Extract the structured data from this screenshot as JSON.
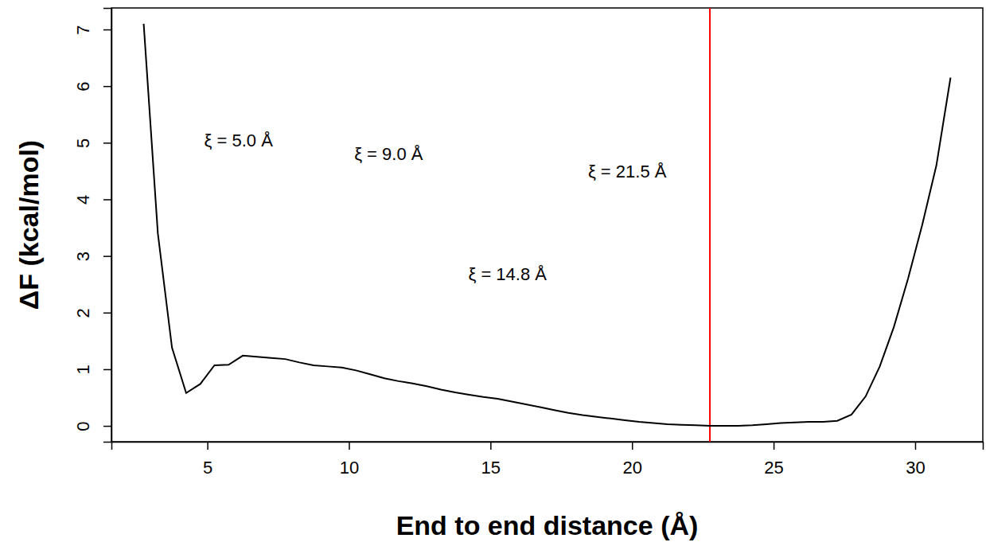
{
  "chart_data": {
    "type": "line",
    "x_label": "End to end distance (Å)",
    "y_label": "ΔF (kcal/mol)",
    "x": [
      2.75,
      3.25,
      3.75,
      4.25,
      4.75,
      5.25,
      5.75,
      6.25,
      6.75,
      7.25,
      7.75,
      8.25,
      8.75,
      9.25,
      9.75,
      10.25,
      10.75,
      11.25,
      11.75,
      12.25,
      12.75,
      13.25,
      13.75,
      14.25,
      14.75,
      15.25,
      15.75,
      16.25,
      16.75,
      17.25,
      17.75,
      18.25,
      18.75,
      19.25,
      19.75,
      20.25,
      20.75,
      21.25,
      21.75,
      22.25,
      22.75,
      23.25,
      23.75,
      24.25,
      24.75,
      25.25,
      25.75,
      26.25,
      26.75,
      27.25,
      27.75,
      28.25,
      28.75,
      29.25,
      29.75,
      30.25,
      30.75,
      31.25
    ],
    "values": [
      7.1,
      3.4,
      1.38,
      0.58,
      0.74,
      1.07,
      1.08,
      1.24,
      1.22,
      1.2,
      1.18,
      1.12,
      1.07,
      1.05,
      1.03,
      0.98,
      0.91,
      0.84,
      0.79,
      0.75,
      0.7,
      0.64,
      0.59,
      0.55,
      0.51,
      0.48,
      0.43,
      0.38,
      0.33,
      0.28,
      0.23,
      0.19,
      0.16,
      0.13,
      0.1,
      0.07,
      0.05,
      0.03,
      0.02,
      0.01,
      0.0,
      0.0,
      0.0,
      0.01,
      0.03,
      0.05,
      0.06,
      0.07,
      0.07,
      0.09,
      0.2,
      0.52,
      1.05,
      1.75,
      2.6,
      3.55,
      4.6,
      6.15
    ],
    "color": "#000000",
    "xlim": [
      1.61,
      32.39
    ],
    "ylim": [
      -0.28,
      7.38
    ],
    "xticks": [
      5,
      10,
      15,
      20,
      25,
      30
    ],
    "yticks": [
      0,
      1,
      2,
      3,
      4,
      5,
      6,
      7
    ],
    "grid": false,
    "reference_line": {
      "x": 22.75,
      "color": "#ff0000"
    },
    "annotations": [
      {
        "text": "ξ = 5.0 Å",
        "x": 6.1,
        "y": 4.93
      },
      {
        "text": "ξ = 9.0 Å",
        "x": 11.4,
        "y": 4.7
      },
      {
        "text": "ξ = 14.8 Å",
        "x": 15.6,
        "y": 2.57
      },
      {
        "text": "ξ = 21.5 Å",
        "x": 19.83,
        "y": 4.39
      }
    ]
  }
}
